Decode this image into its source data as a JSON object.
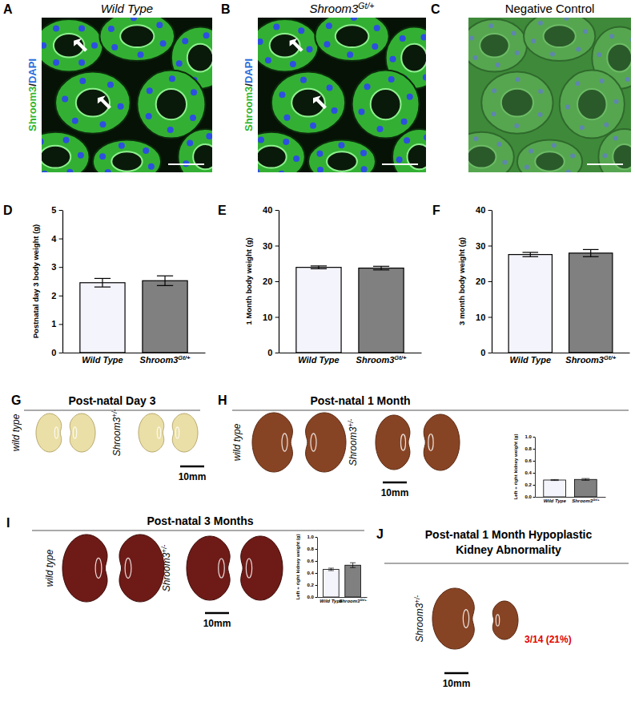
{
  "image_panels": [
    {
      "panel": "A",
      "title": "Wild Type",
      "ylabel": [
        {
          "text": "Shroom3",
          "color": "#2fb52f"
        },
        {
          "text": "/",
          "color": "#1a1a1a"
        },
        {
          "text": "DAPI",
          "color": "#2a6fdb"
        }
      ]
    },
    {
      "panel": "B",
      "title": "Shroom3Gt/+",
      "ylabel": [
        {
          "text": "Shroom3",
          "color": "#2fb52f"
        },
        {
          "text": "/",
          "color": "#1a1a1a"
        },
        {
          "text": "DAPI",
          "color": "#2a6fdb"
        }
      ]
    },
    {
      "panel": "C",
      "title": "Negative Control"
    }
  ],
  "kidney_panels": [
    {
      "panel": "G",
      "title": [
        "Post-natal Day 3"
      ],
      "groups": [
        "wild type",
        "Shroom3+/-"
      ],
      "scale_bar": "10mm"
    },
    {
      "panel": "H",
      "title": [
        "Post-natal 1 Month"
      ],
      "groups": [
        "wild type",
        "Shroom3+/-"
      ],
      "scale_bar": "10mm"
    },
    {
      "panel": "I",
      "title": [
        "Post-natal 3 Months"
      ],
      "groups": [
        "wild type",
        "Shroom3+/-"
      ],
      "scale_bar": "10mm"
    },
    {
      "panel": "J",
      "title": [
        "Post-natal 1 Month Hypoplastic",
        "Kidney Abnormality"
      ],
      "groups": [
        "Shroom3+/-"
      ],
      "scale_bar": "10mm",
      "annotation": "3/14 (21%)",
      "annotation_color": "#e00000"
    }
  ],
  "chart_data": [
    {
      "panel": "D",
      "type": "bar",
      "ylabel": "Postnatal day 3 body weight (g)",
      "categories": [
        "Wild Type",
        "Shroom3Gt/+"
      ],
      "values": [
        2.45,
        2.52
      ],
      "errors": [
        0.15,
        0.17
      ],
      "colors": [
        "#f4f4fc",
        "#808080"
      ],
      "ylim": [
        0,
        5
      ],
      "yticks": [
        0,
        1,
        2,
        3,
        4,
        5
      ]
    },
    {
      "panel": "E",
      "type": "bar",
      "ylabel": "1 Month body weight (g)",
      "categories": [
        "Wild Type",
        "Shroom3Gt/+"
      ],
      "values": [
        23.9,
        23.7
      ],
      "errors": [
        0.4,
        0.5
      ],
      "colors": [
        "#f4f4fc",
        "#808080"
      ],
      "ylim": [
        0,
        40
      ],
      "yticks": [
        0,
        10,
        20,
        30,
        40
      ]
    },
    {
      "panel": "F",
      "type": "bar",
      "ylabel": "3 month body weight (g)",
      "categories": [
        "Wild Type",
        "Shroom3Gt/+"
      ],
      "values": [
        27.5,
        27.9
      ],
      "errors": [
        0.6,
        1.0
      ],
      "colors": [
        "#f4f4fc",
        "#808080"
      ],
      "ylim": [
        0,
        40
      ],
      "yticks": [
        0,
        10,
        20,
        30,
        40
      ]
    },
    {
      "type": "bar",
      "ylabel": "Left + right kidney weight (g)",
      "categories": [
        "Wild Type",
        "Shroom3Gt/+"
      ],
      "values": [
        0.28,
        0.29
      ],
      "errors": [
        0.008,
        0.015
      ],
      "colors": [
        "#f4f4fc",
        "#808080"
      ],
      "ylim": [
        0,
        1
      ],
      "yticks": [
        {
          "value": 0,
          "label": "0.0"
        },
        0.2,
        0.4,
        0.6,
        0.8,
        {
          "value": 1,
          "label": "1.0"
        }
      ]
    },
    {
      "type": "bar",
      "ylabel": "Left + right kidney weight (g)",
      "categories": [
        "Wild Type",
        "Shroom3Gt/+"
      ],
      "values": [
        0.46,
        0.53
      ],
      "errors": [
        0.02,
        0.04
      ],
      "colors": [
        "#f4f4fc",
        "#808080"
      ],
      "ylim": [
        0,
        1
      ],
      "yticks": [
        {
          "value": 0,
          "label": "0.0"
        },
        0.2,
        0.4,
        0.6,
        0.8,
        {
          "value": 1,
          "label": "1.0"
        }
      ]
    }
  ]
}
